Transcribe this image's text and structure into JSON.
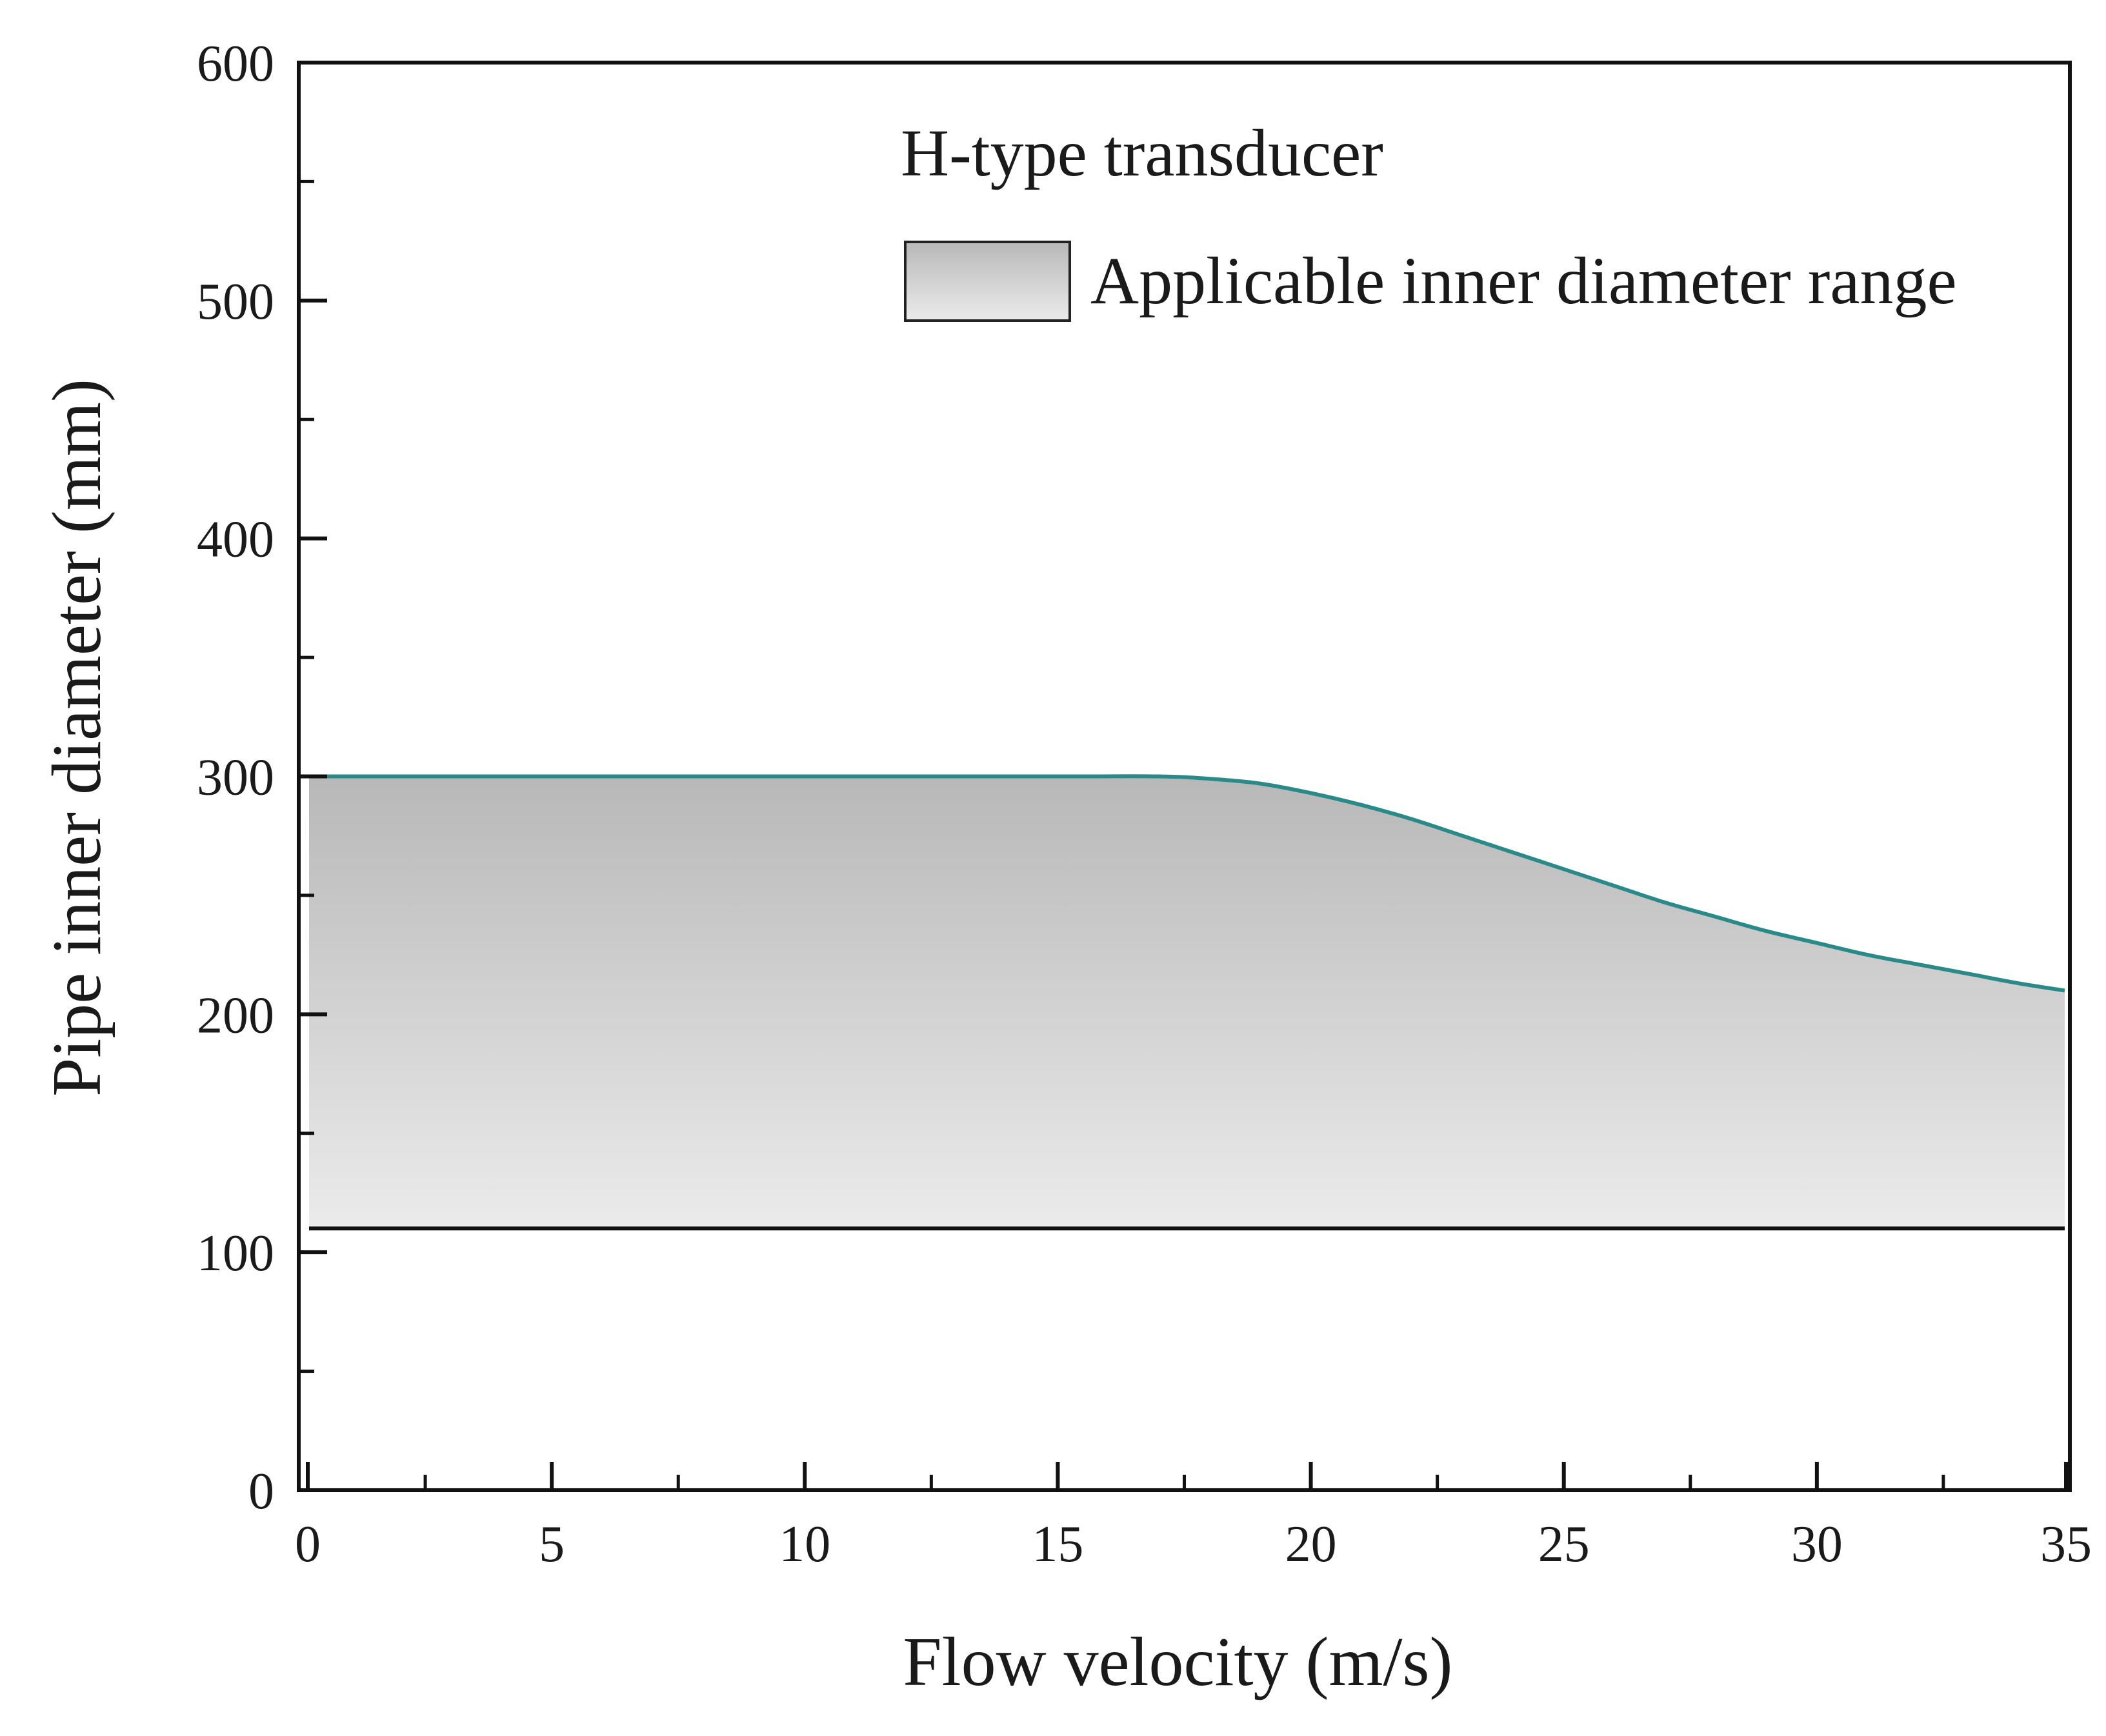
{
  "chart_data": {
    "type": "area",
    "xlabel": "Flow velocity (m/s)",
    "ylabel": "Pipe inner diameter (mm)",
    "xlim": [
      0,
      35
    ],
    "ylim": [
      0,
      600
    ],
    "x_ticks": [
      0,
      5,
      10,
      15,
      20,
      25,
      30,
      35
    ],
    "y_ticks": [
      0,
      100,
      200,
      300,
      400,
      500,
      600
    ],
    "grid": false,
    "legend": {
      "title": "H-type transducer",
      "entries": [
        "Applicable inner diameter range"
      ],
      "placement": "top-right"
    },
    "series": [
      {
        "name": "Applicable inner diameter range",
        "upper": {
          "x": [
            0,
            5,
            10,
            15,
            17,
            18,
            19,
            20,
            21,
            22,
            23,
            24,
            25,
            26,
            27,
            28,
            29,
            30,
            31,
            32,
            33,
            34,
            35
          ],
          "y": [
            300,
            300,
            300,
            300,
            300,
            299,
            297,
            293,
            288,
            282,
            275,
            268,
            261,
            254,
            247,
            241,
            235,
            230,
            225,
            221,
            217,
            213,
            210
          ]
        },
        "lower": {
          "x": [
            0,
            35
          ],
          "y": [
            110,
            110
          ]
        }
      }
    ],
    "colors": {
      "upper_line": "#2a8a8a",
      "lower_line": "#111111",
      "fill_top": "#b8b8b8",
      "fill_bottom": "#ebebeb",
      "axis": "#111111"
    }
  }
}
